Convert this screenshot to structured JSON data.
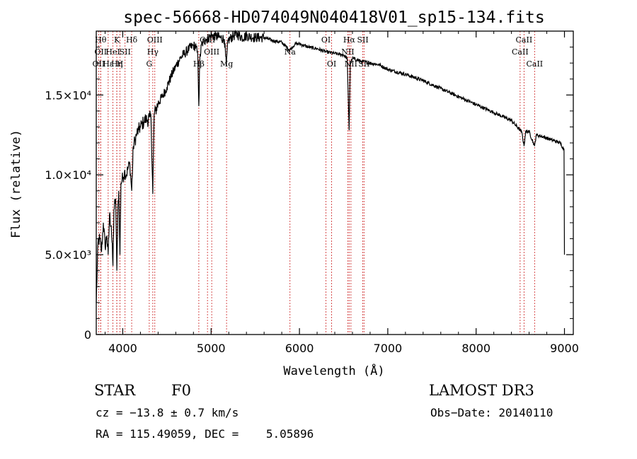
{
  "chart_data": {
    "type": "line",
    "title": "spec-56668-HD074049N040418V01_sp15-134.fits",
    "xlabel": "Wavelength (Å)",
    "ylabel": "Flux (relative)",
    "xlim": [
      3700,
      9100
    ],
    "ylim": [
      0,
      19000
    ],
    "xticks": [
      {
        "value": 4000,
        "label": "4000"
      },
      {
        "value": 5000,
        "label": "5000"
      },
      {
        "value": 6000,
        "label": "6000"
      },
      {
        "value": 7000,
        "label": "7000"
      },
      {
        "value": 8000,
        "label": "8000"
      },
      {
        "value": 9000,
        "label": "9000"
      }
    ],
    "yticks": [
      {
        "value": 0,
        "label": "0"
      },
      {
        "value": 5000,
        "label": "5.0×10³"
      },
      {
        "value": 10000,
        "label": "1.0×10⁴"
      },
      {
        "value": 15000,
        "label": "1.5×10⁴"
      }
    ],
    "series": [
      {
        "x": [
          3700,
          3720,
          3740,
          3760,
          3780,
          3800,
          3820,
          3835,
          3850,
          3870,
          3889,
          3900,
          3920,
          3933,
          3945,
          3955,
          3968,
          3980,
          4000,
          4020,
          4040,
          4060,
          4080,
          4101,
          4120,
          4140,
          4160,
          4180,
          4200,
          4220,
          4240,
          4260,
          4280,
          4300,
          4320,
          4340,
          4355,
          4370,
          4400,
          4450,
          4500,
          4550,
          4600,
          4650,
          4700,
          4750,
          4800,
          4830,
          4850,
          4861,
          4872,
          4890,
          4920,
          4950,
          5000,
          5050,
          5100,
          5150,
          5172,
          5190,
          5250,
          5300,
          5350,
          5400,
          5500,
          5600,
          5700,
          5800,
          5890,
          5950,
          6000,
          6100,
          6200,
          6300,
          6400,
          6500,
          6540,
          6563,
          6575,
          6600,
          6700,
          6800,
          6900,
          7000,
          7200,
          7400,
          7600,
          7800,
          8000,
          8200,
          8400,
          8498,
          8520,
          8542,
          8560,
          8600,
          8662,
          8680,
          8750,
          8850,
          8950,
          8995,
          9000
        ],
        "values": [
          2000,
          5800,
          6000,
          5200,
          7000,
          5500,
          6200,
          5000,
          7500,
          6800,
          4300,
          7800,
          8500,
          4000,
          8000,
          9000,
          5000,
          9500,
          9800,
          10200,
          10000,
          10400,
          10700,
          9000,
          11800,
          12200,
          12600,
          12800,
          13000,
          13200,
          13300,
          13500,
          13400,
          13600,
          13500,
          8800,
          13800,
          14000,
          14500,
          14900,
          15500,
          16200,
          16800,
          17300,
          17600,
          17900,
          18100,
          18000,
          17400,
          14300,
          17200,
          18100,
          18400,
          18500,
          18700,
          18700,
          18600,
          18500,
          16800,
          18400,
          18700,
          18800,
          18600,
          18700,
          18600,
          18600,
          18400,
          18300,
          17800,
          18200,
          18200,
          18000,
          17900,
          17700,
          17600,
          17500,
          17300,
          12800,
          16900,
          17300,
          17100,
          17000,
          16900,
          16600,
          16300,
          15900,
          15400,
          14900,
          14400,
          13900,
          13400,
          12800,
          12600,
          11800,
          12700,
          12700,
          11800,
          12500,
          12400,
          12200,
          12000,
          11600,
          5000
        ]
      }
    ],
    "lines": [
      {
        "x": 3727,
        "label": "OII",
        "row": 2
      },
      {
        "x": 3750,
        "label": "Hθ",
        "row": 0
      },
      {
        "x": 3750,
        "label": "OII",
        "row": 1
      },
      {
        "x": 3835,
        "label": "Hε",
        "row": 2
      },
      {
        "x": 3889,
        "label": "HeI",
        "row": 1
      },
      {
        "x": 3933,
        "label": "K",
        "row": 0
      },
      {
        "x": 3933,
        "label": "Hη",
        "row": 2
      },
      {
        "x": 3968,
        "label": "H",
        "row": 2
      },
      {
        "x": 4026,
        "label": "SII",
        "row": 1
      },
      {
        "x": 4101,
        "label": "Hδ",
        "row": 0
      },
      {
        "x": 4300,
        "label": "G",
        "row": 2
      },
      {
        "x": 4340,
        "label": "Hγ",
        "row": 1
      },
      {
        "x": 4363,
        "label": "OIII",
        "row": 0
      },
      {
        "x": 4861,
        "label": "Hβ",
        "row": 2
      },
      {
        "x": 4959,
        "label": "OIII",
        "row": 0
      },
      {
        "x": 5007,
        "label": "OIII",
        "row": 1
      },
      {
        "x": 5175,
        "label": "Mg",
        "row": 2
      },
      {
        "x": 5893,
        "label": "Na",
        "row": 1
      },
      {
        "x": 6300,
        "label": "OI",
        "row": 0
      },
      {
        "x": 6364,
        "label": "OI",
        "row": 2
      },
      {
        "x": 6548,
        "label": "NII",
        "row": 1
      },
      {
        "x": 6563,
        "label": "Hα",
        "row": 0
      },
      {
        "x": 6583,
        "label": "NII",
        "row": 2
      },
      {
        "x": 6717,
        "label": "SII",
        "row": 0
      },
      {
        "x": 6731,
        "label": "SII",
        "row": 2
      },
      {
        "x": 8498,
        "label": "CaII",
        "row": 1
      },
      {
        "x": 8542,
        "label": "CaII",
        "row": 0
      },
      {
        "x": 8662,
        "label": "CaII",
        "row": 2
      }
    ]
  },
  "info": {
    "object_type": "STAR",
    "subclass": "F0",
    "survey": "LAMOST DR3",
    "cz": "cz = −13.8 ± 0.7 km/s",
    "obs_date": "Obs−Date: 20140110",
    "coords": "RA = 115.49059, DEC =    5.05896"
  }
}
